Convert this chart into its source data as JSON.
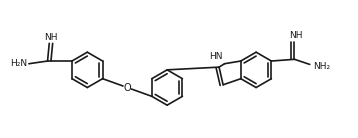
{
  "bg_color": "#ffffff",
  "line_color": "#1a1a1a",
  "line_width": 1.2,
  "figsize": [
    3.58,
    1.38
  ],
  "dpi": 100,
  "xlim": [
    0,
    10.5
  ],
  "ylim": [
    0,
    3.85
  ]
}
